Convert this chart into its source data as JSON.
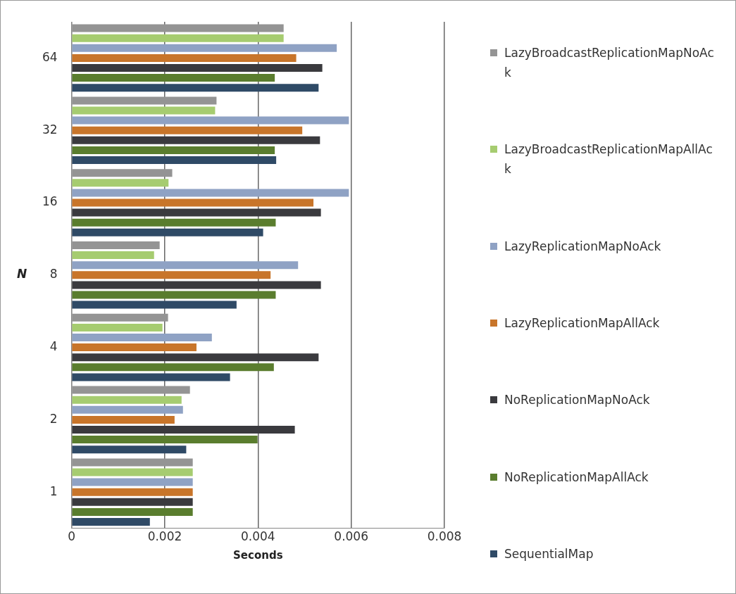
{
  "chart_data": {
    "type": "bar",
    "orientation": "horizontal",
    "xlabel": "Seconds",
    "ylabel": "N",
    "categories": [
      "64",
      "32",
      "16",
      "8",
      "4",
      "2",
      "1"
    ],
    "series": [
      {
        "name": "LazyBroadcastReplicationMapNoAck",
        "color": "#949494",
        "values": [
          0.00455,
          0.00311,
          0.00216,
          0.00189,
          0.00207,
          0.00254,
          0.0026
        ]
      },
      {
        "name": "LazyBroadcastReplicationMapAllAck",
        "color": "#a6cc70",
        "values": [
          0.00455,
          0.00308,
          0.00208,
          0.00177,
          0.00195,
          0.00236,
          0.0026
        ]
      },
      {
        "name": "LazyReplicationMapNoAck",
        "color": "#8fa2c4",
        "values": [
          0.00569,
          0.00595,
          0.00595,
          0.00486,
          0.00301,
          0.00239,
          0.0026
        ]
      },
      {
        "name": "LazyReplicationMapAllAck",
        "color": "#c8752a",
        "values": [
          0.00482,
          0.00495,
          0.00519,
          0.00427,
          0.00268,
          0.00221,
          0.0026
        ]
      },
      {
        "name": "NoReplicationMapNoAck",
        "color": "#3a3a3e",
        "values": [
          0.00538,
          0.00533,
          0.00535,
          0.00535,
          0.0053,
          0.00479,
          0.0026
        ]
      },
      {
        "name": "NoReplicationMapAllAck",
        "color": "#5a7d2e",
        "values": [
          0.00436,
          0.00436,
          0.00438,
          0.00438,
          0.00434,
          0.00399,
          0.0026
        ]
      },
      {
        "name": "SequentialMap",
        "color": "#2f4a66",
        "values": [
          0.0053,
          0.00439,
          0.00411,
          0.00354,
          0.0034,
          0.00246,
          0.00168
        ]
      }
    ],
    "xlim": [
      0,
      0.008
    ],
    "xticks": [
      0,
      0.002,
      0.004,
      0.006,
      0.008
    ],
    "grid": "x",
    "legend": "right"
  }
}
